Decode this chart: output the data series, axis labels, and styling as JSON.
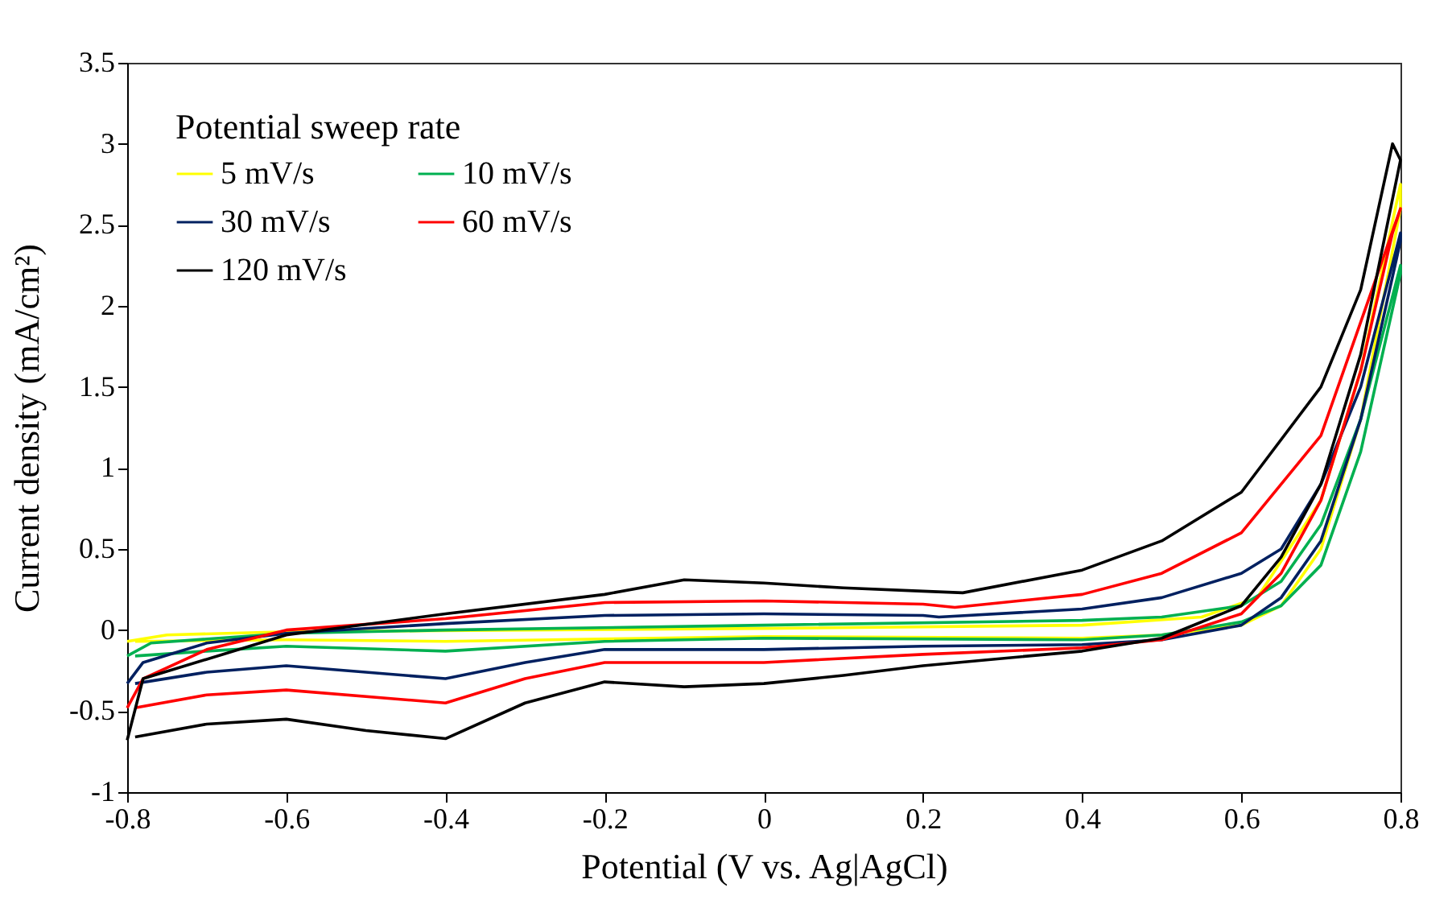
{
  "chart_data": {
    "type": "line",
    "xlabel": "Potential (V vs. Ag|AgCl)",
    "ylabel": "Current density (mA/cm²)",
    "legend_title": "Potential sweep rate",
    "legend": "top left",
    "grid": false,
    "marker": "none",
    "line_style": "solid",
    "xlim": [
      -0.8,
      0.8
    ],
    "xticks": [
      -0.8,
      -0.6,
      -0.4,
      -0.2,
      0,
      0.2,
      0.4,
      0.6,
      0.8
    ],
    "ylim": [
      -1,
      3.5
    ],
    "yticks": [
      -1,
      -0.5,
      0,
      0.5,
      1,
      1.5,
      2,
      2.5,
      3,
      3.5
    ],
    "series": [
      {
        "name": "5 mV/s",
        "color": "#ffff00",
        "x": [
          -0.8,
          -0.75,
          -0.6,
          0,
          0.4,
          0.55,
          0.62,
          0.7,
          0.75,
          0.8,
          0.8,
          0.75,
          0.7,
          0.65,
          0.6,
          0.5,
          0.4,
          0,
          -0.4,
          -0.6,
          -0.79
        ],
        "values": [
          -0.07,
          -0.03,
          -0.01,
          0.01,
          0.03,
          0.08,
          0.2,
          0.8,
          1.6,
          2.75,
          2.6,
          1.3,
          0.5,
          0.15,
          0.03,
          -0.03,
          -0.05,
          -0.04,
          -0.07,
          -0.06,
          -0.07
        ]
      },
      {
        "name": "10 mV/s",
        "color": "#00b050",
        "x": [
          -0.8,
          -0.77,
          -0.6,
          -0.4,
          0,
          0.4,
          0.5,
          0.6,
          0.65,
          0.7,
          0.75,
          0.8,
          0.8,
          0.75,
          0.7,
          0.65,
          0.6,
          0.5,
          0.4,
          0,
          -0.2,
          -0.4,
          -0.6,
          -0.7,
          -0.79
        ],
        "values": [
          -0.16,
          -0.08,
          -0.02,
          0,
          0.03,
          0.06,
          0.08,
          0.15,
          0.3,
          0.65,
          1.3,
          2.25,
          2.2,
          1.1,
          0.4,
          0.15,
          0.05,
          -0.03,
          -0.06,
          -0.05,
          -0.07,
          -0.13,
          -0.1,
          -0.13,
          -0.16
        ]
      },
      {
        "name": "30 mV/s",
        "color": "#002060",
        "x": [
          -0.8,
          -0.78,
          -0.7,
          -0.6,
          -0.4,
          -0.2,
          0,
          0.2,
          0.22,
          0.4,
          0.5,
          0.6,
          0.65,
          0.7,
          0.75,
          0.8,
          0.8,
          0.75,
          0.7,
          0.65,
          0.6,
          0.5,
          0.4,
          0.2,
          0,
          -0.2,
          -0.3,
          -0.4,
          -0.6,
          -0.7,
          -0.79
        ],
        "values": [
          -0.33,
          -0.2,
          -0.08,
          -0.02,
          0.04,
          0.09,
          0.1,
          0.09,
          0.08,
          0.13,
          0.2,
          0.35,
          0.5,
          0.9,
          1.5,
          2.45,
          2.4,
          1.3,
          0.55,
          0.2,
          0.03,
          -0.06,
          -0.09,
          -0.1,
          -0.12,
          -0.12,
          -0.2,
          -0.3,
          -0.22,
          -0.26,
          -0.33
        ]
      },
      {
        "name": "60 mV/s",
        "color": "#ff0000",
        "x": [
          -0.8,
          -0.78,
          -0.7,
          -0.6,
          -0.4,
          -0.2,
          0,
          0.2,
          0.24,
          0.4,
          0.5,
          0.6,
          0.7,
          0.75,
          0.8,
          0.79,
          0.75,
          0.7,
          0.65,
          0.6,
          0.5,
          0.4,
          0.2,
          0,
          -0.2,
          -0.3,
          -0.4,
          -0.6,
          -0.7,
          -0.79
        ],
        "values": [
          -0.48,
          -0.3,
          -0.12,
          0,
          0.07,
          0.17,
          0.18,
          0.16,
          0.14,
          0.22,
          0.35,
          0.6,
          1.2,
          1.9,
          2.6,
          2.45,
          1.6,
          0.8,
          0.35,
          0.1,
          -0.06,
          -0.11,
          -0.15,
          -0.2,
          -0.2,
          -0.3,
          -0.45,
          -0.37,
          -0.4,
          -0.48
        ]
      },
      {
        "name": "120 mV/s",
        "color": "#000000",
        "x": [
          -0.8,
          -0.78,
          -0.6,
          -0.4,
          -0.2,
          -0.1,
          0,
          0.1,
          0.2,
          0.25,
          0.4,
          0.5,
          0.6,
          0.7,
          0.75,
          0.79,
          0.8,
          0.75,
          0.7,
          0.65,
          0.6,
          0.5,
          0.4,
          0.2,
          0.1,
          0,
          -0.1,
          -0.2,
          -0.3,
          -0.4,
          -0.5,
          -0.6,
          -0.7,
          -0.79
        ],
        "values": [
          -0.68,
          -0.3,
          -0.03,
          0.1,
          0.22,
          0.31,
          0.29,
          0.26,
          0.24,
          0.23,
          0.37,
          0.55,
          0.85,
          1.5,
          2.1,
          3.0,
          2.9,
          1.7,
          0.9,
          0.45,
          0.15,
          -0.05,
          -0.13,
          -0.22,
          -0.28,
          -0.33,
          -0.35,
          -0.32,
          -0.45,
          -0.67,
          -0.62,
          -0.55,
          -0.58,
          -0.66
        ]
      }
    ]
  }
}
